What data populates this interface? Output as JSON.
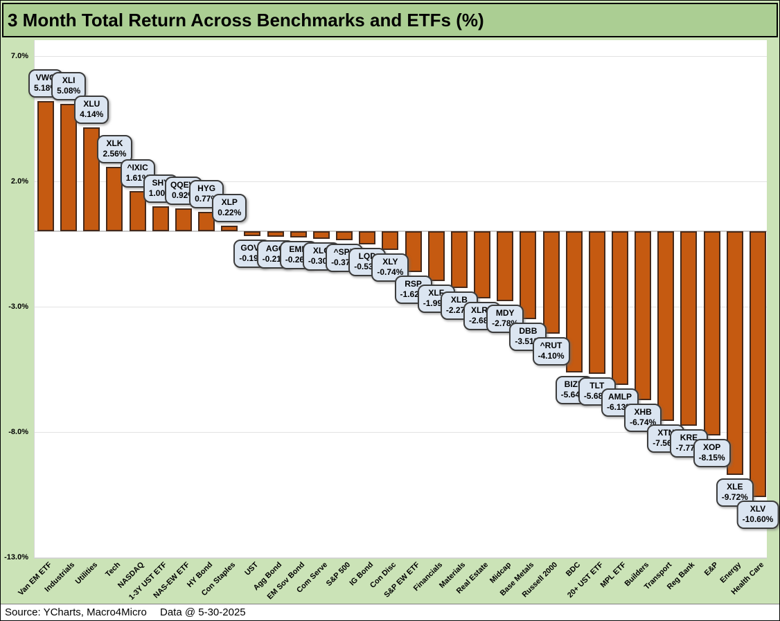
{
  "title": "3 Month Total Return Across Benchmarks and ETFs (%)",
  "footer": {
    "source": "Source: YCharts, Macro4Micro",
    "data_date": "Data @ 5-30-2025"
  },
  "colors": {
    "page_background_green": "#cbe3b7",
    "title_background_green": "#abce93",
    "plot_background": "#ffffff",
    "bar_fill": "#c55a11",
    "bar_border": "#46291a",
    "callout_fill": "#dbe5f1",
    "callout_border": "#3b3b3b",
    "gridline": "#e2e2e2"
  },
  "chart_data": {
    "type": "bar",
    "title": "3 Month Total Return Across Benchmarks and ETFs (%)",
    "xlabel": "",
    "ylabel": "",
    "ylim": [
      -13.0,
      7.0
    ],
    "grid": true,
    "legend_position": "none",
    "yticks": [
      {
        "value": 7.0,
        "label": "7.0%"
      },
      {
        "value": 2.0,
        "label": "2.0%"
      },
      {
        "value": -3.0,
        "label": "-3.0%"
      },
      {
        "value": -8.0,
        "label": "-8.0%"
      },
      {
        "value": -13.0,
        "label": "-13.0%"
      }
    ],
    "items": [
      {
        "ticker": "VWO",
        "category": "Van EM ETF",
        "value": 5.18,
        "label": "5.18%"
      },
      {
        "ticker": "XLI",
        "category": "Industrials",
        "value": 5.08,
        "label": "5.08%"
      },
      {
        "ticker": "XLU",
        "category": "Utilities",
        "value": 4.14,
        "label": "4.14%"
      },
      {
        "ticker": "XLK",
        "category": "Tech",
        "value": 2.56,
        "label": "2.56%"
      },
      {
        "ticker": "^IXIC",
        "category": "NASDAQ",
        "value": 1.61,
        "label": "1.61%"
      },
      {
        "ticker": "SHY",
        "category": "1-3Y UST ETF",
        "value": 1.0,
        "label": "1.00%"
      },
      {
        "ticker": "QQEW",
        "category": "NAS-EW ETF",
        "value": 0.92,
        "label": "0.92%"
      },
      {
        "ticker": "HYG",
        "category": "HY Bond",
        "value": 0.77,
        "label": "0.77%"
      },
      {
        "ticker": "XLP",
        "category": "Con Staples",
        "value": 0.22,
        "label": "0.22%"
      },
      {
        "ticker": "GOVT",
        "category": "UST",
        "value": -0.19,
        "label": "-0.19%"
      },
      {
        "ticker": "AGG",
        "category": "Agg Bond",
        "value": -0.21,
        "label": "-0.21%"
      },
      {
        "ticker": "EMB",
        "category": "EM Sov Bond",
        "value": -0.26,
        "label": "-0.26%"
      },
      {
        "ticker": "XLC",
        "category": "Com Serve",
        "value": -0.3,
        "label": "-0.30%"
      },
      {
        "ticker": "^SPX",
        "category": "S&P 500",
        "value": -0.37,
        "label": "-0.37%"
      },
      {
        "ticker": "LQD",
        "category": "IG Bond",
        "value": -0.53,
        "label": "-0.53%"
      },
      {
        "ticker": "XLY",
        "category": "Con Disc",
        "value": -0.74,
        "label": "-0.74%"
      },
      {
        "ticker": "RSP",
        "category": "S&P EW ETF",
        "value": -1.62,
        "label": "-1.62%"
      },
      {
        "ticker": "XLF",
        "category": "Financials",
        "value": -1.99,
        "label": "-1.99%"
      },
      {
        "ticker": "XLB",
        "category": "Materials",
        "value": -2.27,
        "label": "-2.27%"
      },
      {
        "ticker": "XLRE",
        "category": "Real Estate",
        "value": -2.68,
        "label": "-2.68%"
      },
      {
        "ticker": "MDY",
        "category": "Midcap",
        "value": -2.78,
        "label": "-2.78%"
      },
      {
        "ticker": "DBB",
        "category": "Base Metals",
        "value": -3.51,
        "label": "-3.51%"
      },
      {
        "ticker": "^RUT",
        "category": "Russell 2000",
        "value": -4.1,
        "label": "-4.10%"
      },
      {
        "ticker": "BIZD",
        "category": "BDC",
        "value": -5.64,
        "label": "-5.64%"
      },
      {
        "ticker": "TLT",
        "category": "20+ UST ETF",
        "value": -5.68,
        "label": "-5.68%"
      },
      {
        "ticker": "AMLP",
        "category": "MPL ETF",
        "value": -6.13,
        "label": "-6.13%"
      },
      {
        "ticker": "XHB",
        "category": "Builders",
        "value": -6.74,
        "label": "-6.74%"
      },
      {
        "ticker": "XTN",
        "category": "Transport",
        "value": -7.56,
        "label": "-7.56%"
      },
      {
        "ticker": "KRE",
        "category": "Reg Bank",
        "value": -7.77,
        "label": "-7.77%"
      },
      {
        "ticker": "XOP",
        "category": "E&P",
        "value": -8.15,
        "label": "-8.15%"
      },
      {
        "ticker": "XLE",
        "category": "Energy",
        "value": -9.72,
        "label": "-9.72%"
      },
      {
        "ticker": "XLV",
        "category": "Health Care",
        "value": -10.6,
        "label": "-10.60%"
      }
    ]
  }
}
